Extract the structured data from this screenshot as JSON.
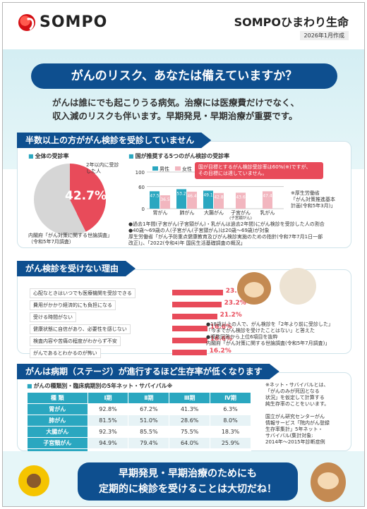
{
  "header": {
    "logo": "SOMPO",
    "company": "SOMPOひまわり生命",
    "date": "2026年1月作成"
  },
  "hero": "がんのリスク、あなたは備えていますか？",
  "intro": [
    "がんは誰にでも起こりうる病気。治療には医療費だけでなく、",
    "収入減のリスクも伴います。早期発見・早期治療が重要です。"
  ],
  "section1": {
    "title": "半数以上の方ががん検診を受診していません",
    "pie_title": "全体の受診率",
    "pie_label": "2年以内に受診した人",
    "pie_value": "42.7%",
    "pie_source": [
      "内閣府「がん対策に関する世論調査」",
      "（令和5年7月調査）"
    ],
    "bar_title": "国が推奨する5つのがん検診の受診率",
    "legend_male": "男性",
    "legend_female": "女性",
    "note": [
      "国が目標とするがん検診受診率は60%(※)ですが、",
      "その目標には達していません。"
    ],
    "source_note": [
      "※厚生労働省",
      "「がん対策推進基本",
      "計画(令和5年3月)」"
    ],
    "footnotes": [
      "●過去1年間(子宮がん(子宮頸がん)・乳がんは過去2年間)にがん検診を受診した人の割合",
      "●40歳～69歳の人(子宮がん(子宮頸がん)は20歳～69歳)が対象",
      "厚生労働省「がん予防重点健康教育及びがん検診実施のための指針(令和7年7月1日一部",
      "改正)」、「2022(令和4)年 国民生活基礎調査の概況」"
    ],
    "colors": {
      "male": "#2aa7c0",
      "female": "#f2b6bf",
      "accent": "#e84b5a",
      "navy": "#0e4f8f"
    }
  },
  "chart_data": {
    "type": "bar",
    "categories": [
      "胃がん",
      "肺がん",
      "大腸がん",
      "子宮がん\n(子宮頸がん)",
      "乳がん"
    ],
    "series": [
      {
        "name": "男性",
        "values": [
          47.5,
          53.2,
          49.1,
          null,
          null
        ]
      },
      {
        "name": "女性",
        "values": [
          36.5,
          46.4,
          42.8,
          43.6,
          47.4
        ]
      }
    ],
    "ylim": [
      0,
      100
    ],
    "yticks": [
      0,
      60,
      100
    ],
    "title": "国が推奨する5つのがん検診の受診率"
  },
  "section2": {
    "title": "がん検診を受けない理由",
    "reasons": [
      {
        "label": "心配なときはいつでも医療機関を受診できる",
        "value": 23.9,
        "text": "23.9%"
      },
      {
        "label": "費用がかかり経済的にも負担になる",
        "value": 23.2,
        "text": "23.2%"
      },
      {
        "label": "受ける時間がない",
        "value": 21.2,
        "text": "21.2%"
      },
      {
        "label": "健康状態に自信があり、必要性を感じない",
        "value": 16.6,
        "text": "16.6%"
      },
      {
        "label": "検査内容や苦痛の程度がわからず不安",
        "value": 16.6,
        "text": "16.6%"
      },
      {
        "label": "がんであるとわかるのが怖い",
        "value": 16.2,
        "text": "16.2%"
      }
    ],
    "notes": [
      "●18歳以上の人で、がん検診を「2年より前に受診した」",
      "「今までがん検診を受けたことはない」と答えた",
      "●複数回答から上位6項目を抜粋",
      "内閣府「がん対策に関する世論調査(令和5年7月調査)」"
    ]
  },
  "section3": {
    "title": "がんは病期（ステージ）が進行するほど生存率が低くなります",
    "table_title": "がんの種類別・臨床病期別の5年ネット・サバイバル※",
    "headers": [
      "種 類",
      "Ⅰ期",
      "Ⅱ期",
      "Ⅲ期",
      "Ⅳ期"
    ],
    "rows": [
      [
        "胃がん",
        "92.8%",
        "67.2%",
        "41.3%",
        "6.3%"
      ],
      [
        "肺がん",
        "81.5%",
        "51.0%",
        "28.6%",
        "8.0%"
      ],
      [
        "大腸がん",
        "92.3%",
        "85.5%",
        "75.5%",
        "18.3%"
      ],
      [
        "子宮頸がん",
        "94.9%",
        "79.4%",
        "64.0%",
        "25.9%"
      ],
      [
        "乳がん",
        "98.9%",
        "94.6%",
        "80.6%",
        "39.8%"
      ]
    ],
    "notes": [
      "※ネット・サバイバルとは、",
      "「がんのみが死因となる",
      "状況」を仮定して計算する",
      "純生存率のことをいいます。",
      "",
      "国立がん研究センターがん",
      "情報サービス「院内がん登録",
      "生存率集計」5年ネット・",
      "サバイバル(集計対象:",
      "2014年～2015年診断症例"
    ]
  },
  "closing": [
    "早期発見・早期治療のためにも",
    "定期的に検診を受けることは大切だね！"
  ]
}
